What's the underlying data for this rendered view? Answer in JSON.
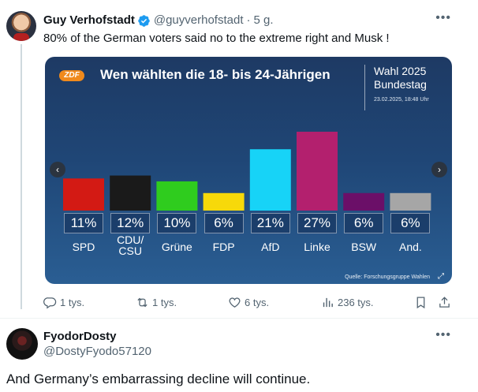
{
  "tweet": {
    "author_name": "Guy Verhofstadt",
    "handle": "@guyverhofstadt",
    "separator": "·",
    "time": "5 g.",
    "text": "80% of the German voters said no to the extreme right and Musk !"
  },
  "card": {
    "logo": "ZDF",
    "title": "Wen wählten die 18- bis 24-Jährigen",
    "election_line1": "Wahl 2025",
    "election_line2": "Bundestag",
    "election_date": "23.02.2025, 18:48 Uhr",
    "source": "Quelle: Forschungsgruppe Wahlen"
  },
  "chart_data": {
    "type": "bar",
    "title": "Wen wählten die 18- bis 24-Jährigen",
    "categories": [
      "SPD",
      "CDU/\nCSU",
      "Grüne",
      "FDP",
      "AfD",
      "Linke",
      "BSW",
      "And."
    ],
    "values": [
      11,
      12,
      10,
      6,
      21,
      27,
      6,
      6
    ],
    "labels": [
      "11%",
      "12%",
      "10%",
      "6%",
      "21%",
      "27%",
      "6%",
      "6%"
    ],
    "colors": [
      "#d31a14",
      "#1a1a1a",
      "#2fcc1e",
      "#f7d90a",
      "#17d3f7",
      "#b3206e",
      "#6b0f68",
      "#a6a6a6"
    ],
    "ylim": [
      0,
      27
    ],
    "grid": false,
    "legend": "none"
  },
  "actions": {
    "reply_count": "1 tys.",
    "retweet_count": "1 tys.",
    "like_count": "6 tys.",
    "views_count": "236 tys."
  },
  "reply": {
    "author_name": "FyodorDosty",
    "handle": "@DostyFyodo57120",
    "text": "And Germany’s embarrassing decline will continue."
  },
  "icons": {
    "more": "more-horizontal-icon",
    "verified": "verified-badge-icon",
    "reply": "reply-icon",
    "retweet": "retweet-icon",
    "like": "heart-icon",
    "views": "views-icon",
    "bookmark": "bookmark-icon",
    "share": "share-icon"
  },
  "colors": {
    "verified": "#1d9bf0",
    "text": "#0f1419",
    "muted": "#536471"
  }
}
